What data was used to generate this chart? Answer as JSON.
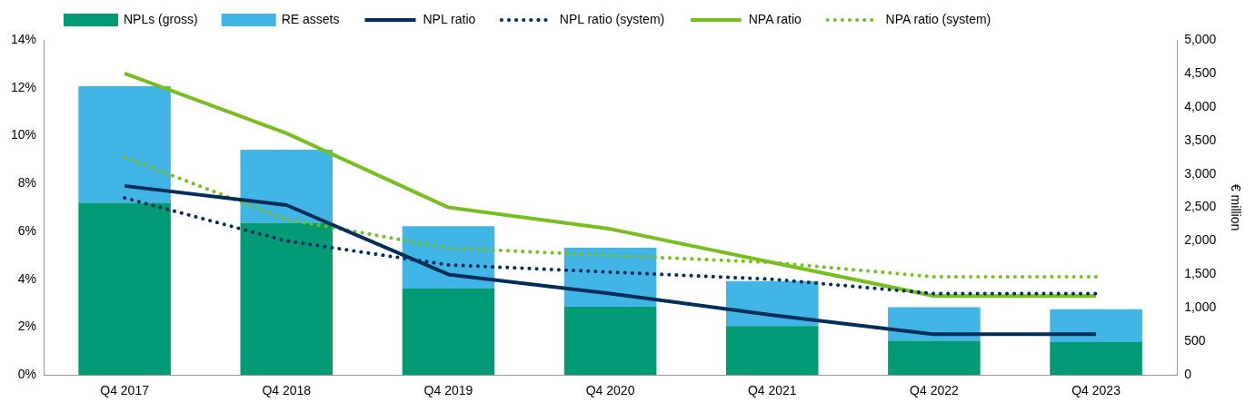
{
  "chart_data": {
    "type": "bar",
    "stacked": true,
    "categories": [
      "Q4 2017",
      "Q4 2018",
      "Q4 2019",
      "Q4 2020",
      "Q4 2021",
      "Q4 2022",
      "Q4 2023"
    ],
    "y2label": "€ million",
    "legend": "top",
    "grid": false,
    "marker": "none",
    "ylim": [
      0,
      14
    ],
    "yticks": [
      {
        "value": 0,
        "label": "0%"
      },
      {
        "value": 2,
        "label": "2%"
      },
      {
        "value": 4,
        "label": "4%"
      },
      {
        "value": 6,
        "label": "6%"
      },
      {
        "value": 8,
        "label": "8%"
      },
      {
        "value": 10,
        "label": "10%"
      },
      {
        "value": 12,
        "label": "12%"
      },
      {
        "value": 14,
        "label": "14%"
      }
    ],
    "y2lim": [
      0,
      5000
    ],
    "y2ticks": [
      0,
      500,
      {
        "value": 1000,
        "label": "1,000"
      },
      {
        "value": 1500,
        "label": "1,500"
      },
      {
        "value": 2000,
        "label": "2,000"
      },
      {
        "value": 2500,
        "label": "2,500"
      },
      {
        "value": 3000,
        "label": "3,000"
      },
      {
        "value": 3500,
        "label": "3,500"
      },
      {
        "value": 4000,
        "label": "4,000"
      },
      {
        "value": 4500,
        "label": "4,500"
      },
      {
        "value": 5000,
        "label": "5,000"
      }
    ],
    "series": [
      {
        "name": "NPLs (gross)",
        "axis": "y2",
        "color": "#009a74",
        "values": [
          2570,
          2270,
          1290,
          1020,
          730,
          510,
          490
        ]
      },
      {
        "name": "RE assets",
        "axis": "y2",
        "color": "#41b6e6",
        "values": [
          1740,
          1090,
          930,
          880,
          670,
          500,
          490
        ]
      },
      {
        "name": "NPL ratio",
        "type": "line",
        "axis": "y",
        "line_style": "solid",
        "color": "#002d59",
        "values": [
          7.9,
          7.1,
          4.2,
          3.4,
          2.5,
          1.7,
          1.7
        ]
      },
      {
        "name": "NPL ratio (system)",
        "type": "line",
        "axis": "y",
        "line_style": "dotted",
        "color": "#002d59",
        "values": [
          7.4,
          5.6,
          4.6,
          4.3,
          4.0,
          3.4,
          3.4
        ]
      },
      {
        "name": "NPA ratio",
        "type": "line",
        "axis": "y",
        "line_style": "solid",
        "color": "#78be20",
        "values": [
          12.6,
          10.1,
          7.0,
          6.1,
          4.7,
          3.3,
          3.3
        ]
      },
      {
        "name": "NPA ratio (system)",
        "type": "line",
        "axis": "y",
        "line_style": "dotted",
        "color": "#78be20",
        "values": [
          9.1,
          6.5,
          5.3,
          5.0,
          4.7,
          4.1,
          4.1
        ]
      }
    ]
  }
}
